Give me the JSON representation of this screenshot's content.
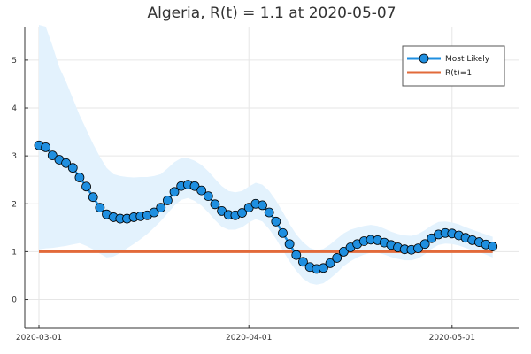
{
  "chart_data": {
    "type": "line",
    "title": "Algeria, R(t) = 1.1 at 2020-05-07",
    "xlabel": "",
    "ylabel": "",
    "x_ticks": [
      "2020-03-01",
      "2020-04-01",
      "2020-05-01"
    ],
    "y_ticks": [
      0,
      1,
      2,
      3,
      4,
      5
    ],
    "ylim": [
      -0.6,
      5.7
    ],
    "x_start": "2020-03-01",
    "x_end": "2020-05-09",
    "grid": true,
    "legend_position": "top-right",
    "series": [
      {
        "name": "Most Likely",
        "color": "#1f8fe0",
        "marker": "circle",
        "band_color": "#e3f2fd",
        "x": [
          "2020-03-01",
          "2020-03-02",
          "2020-03-03",
          "2020-03-04",
          "2020-03-05",
          "2020-03-06",
          "2020-03-07",
          "2020-03-08",
          "2020-03-09",
          "2020-03-10",
          "2020-03-11",
          "2020-03-12",
          "2020-03-13",
          "2020-03-14",
          "2020-03-15",
          "2020-03-16",
          "2020-03-17",
          "2020-03-18",
          "2020-03-19",
          "2020-03-20",
          "2020-03-21",
          "2020-03-22",
          "2020-03-23",
          "2020-03-24",
          "2020-03-25",
          "2020-03-26",
          "2020-03-27",
          "2020-03-28",
          "2020-03-29",
          "2020-03-30",
          "2020-03-31",
          "2020-04-01",
          "2020-04-02",
          "2020-04-03",
          "2020-04-04",
          "2020-04-05",
          "2020-04-06",
          "2020-04-07",
          "2020-04-08",
          "2020-04-09",
          "2020-04-10",
          "2020-04-11",
          "2020-04-12",
          "2020-04-13",
          "2020-04-14",
          "2020-04-15",
          "2020-04-16",
          "2020-04-17",
          "2020-04-18",
          "2020-04-19",
          "2020-04-20",
          "2020-04-21",
          "2020-04-22",
          "2020-04-23",
          "2020-04-24",
          "2020-04-25",
          "2020-04-26",
          "2020-04-27",
          "2020-04-28",
          "2020-04-29",
          "2020-04-30",
          "2020-05-01",
          "2020-05-02",
          "2020-05-03",
          "2020-05-04",
          "2020-05-05",
          "2020-05-06",
          "2020-05-07"
        ],
        "values": [
          3.22,
          3.18,
          3.01,
          2.92,
          2.85,
          2.75,
          2.55,
          2.36,
          2.14,
          1.92,
          1.78,
          1.72,
          1.69,
          1.69,
          1.72,
          1.74,
          1.76,
          1.82,
          1.92,
          2.07,
          2.25,
          2.37,
          2.4,
          2.37,
          2.28,
          2.16,
          1.99,
          1.85,
          1.77,
          1.76,
          1.81,
          1.92,
          2.0,
          1.97,
          1.82,
          1.63,
          1.39,
          1.16,
          0.93,
          0.79,
          0.68,
          0.64,
          0.66,
          0.76,
          0.87,
          1.0,
          1.09,
          1.16,
          1.22,
          1.25,
          1.24,
          1.19,
          1.14,
          1.09,
          1.05,
          1.04,
          1.07,
          1.16,
          1.28,
          1.36,
          1.39,
          1.38,
          1.34,
          1.29,
          1.24,
          1.2,
          1.15,
          1.11
        ],
        "lower": [
          1.05,
          1.07,
          1.08,
          1.1,
          1.12,
          1.15,
          1.18,
          1.12,
          1.05,
          0.96,
          0.88,
          0.9,
          0.97,
          1.07,
          1.16,
          1.26,
          1.37,
          1.5,
          1.64,
          1.8,
          1.96,
          2.08,
          2.12,
          2.06,
          1.96,
          1.82,
          1.66,
          1.52,
          1.46,
          1.46,
          1.51,
          1.61,
          1.68,
          1.63,
          1.47,
          1.27,
          1.03,
          0.8,
          0.6,
          0.44,
          0.34,
          0.31,
          0.34,
          0.44,
          0.56,
          0.7,
          0.8,
          0.88,
          0.94,
          0.98,
          0.98,
          0.94,
          0.89,
          0.85,
          0.82,
          0.82,
          0.86,
          0.95,
          1.06,
          1.14,
          1.17,
          1.16,
          1.13,
          1.08,
          1.03,
          0.99,
          0.94,
          0.88
        ],
        "upper": [
          5.9,
          5.7,
          5.3,
          4.85,
          4.55,
          4.2,
          3.85,
          3.55,
          3.25,
          2.98,
          2.75,
          2.62,
          2.58,
          2.56,
          2.55,
          2.56,
          2.56,
          2.58,
          2.62,
          2.74,
          2.87,
          2.95,
          2.95,
          2.9,
          2.81,
          2.68,
          2.52,
          2.37,
          2.27,
          2.24,
          2.27,
          2.36,
          2.44,
          2.4,
          2.27,
          2.07,
          1.83,
          1.58,
          1.36,
          1.2,
          1.08,
          1.03,
          1.06,
          1.15,
          1.27,
          1.38,
          1.46,
          1.5,
          1.54,
          1.56,
          1.54,
          1.48,
          1.42,
          1.37,
          1.34,
          1.33,
          1.37,
          1.45,
          1.55,
          1.62,
          1.63,
          1.61,
          1.57,
          1.51,
          1.46,
          1.41,
          1.36,
          1.31
        ]
      },
      {
        "name": "R(t)=1",
        "color": "#e26a3a",
        "x": [
          "2020-03-01",
          "2020-05-07"
        ],
        "values": [
          1,
          1
        ]
      }
    ]
  }
}
